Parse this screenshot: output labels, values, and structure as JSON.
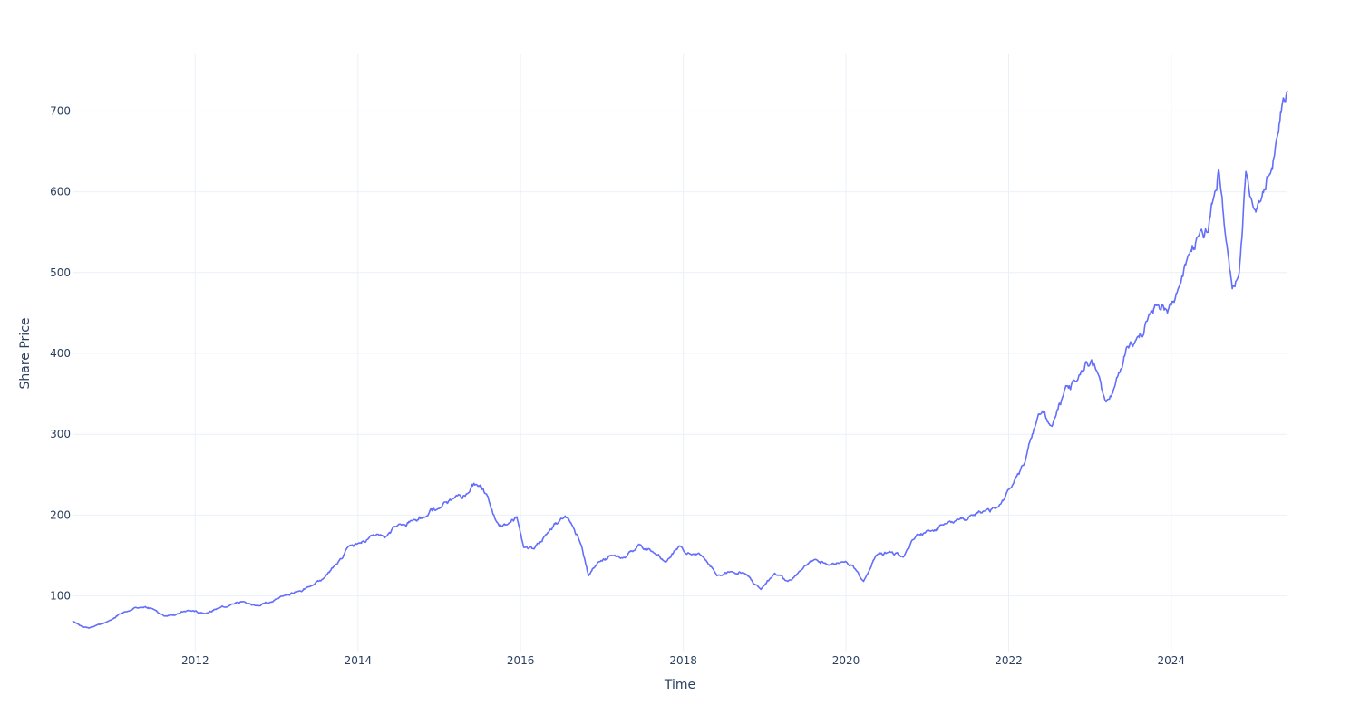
{
  "chart_data": {
    "type": "line",
    "title": "",
    "xlabel": "Time",
    "ylabel": "Share Price",
    "xlim": [
      "2010-06-29",
      "2025-06-06"
    ],
    "ylim": [
      30,
      770
    ],
    "grid": true,
    "x_ticks": [
      "2012",
      "2014",
      "2016",
      "2018",
      "2020",
      "2022",
      "2024"
    ],
    "y_ticks": [
      100,
      200,
      300,
      400,
      500,
      600,
      700
    ],
    "colors": {
      "line": "#636efa",
      "grid": "#ebf0f8",
      "text": "#2a3f5f",
      "background": "#ffffff"
    },
    "series": [
      {
        "x": [
          "2010-06-29",
          "2010-08-15",
          "2010-10-01",
          "2010-12-01",
          "2011-02-15",
          "2011-05-01",
          "2011-07-01",
          "2011-08-15",
          "2011-10-01",
          "2011-12-01",
          "2012-02-15",
          "2012-04-15",
          "2012-06-15",
          "2012-08-01",
          "2012-10-01",
          "2012-12-01",
          "2013-02-01",
          "2013-04-01",
          "2013-06-01",
          "2013-08-01",
          "2013-10-01",
          "2013-11-15",
          "2014-01-01",
          "2014-03-01",
          "2014-05-01",
          "2014-07-01",
          "2014-09-01",
          "2014-11-01",
          "2015-01-01",
          "2015-03-01",
          "2015-05-15",
          "2015-06-15",
          "2015-08-01",
          "2015-09-15",
          "2015-11-01",
          "2015-12-15",
          "2016-01-15",
          "2016-03-01",
          "2016-05-01",
          "2016-07-01",
          "2016-08-15",
          "2016-10-01",
          "2016-11-01",
          "2016-12-15",
          "2017-02-15",
          "2017-04-15",
          "2017-06-15",
          "2017-08-15",
          "2017-10-15",
          "2017-12-15",
          "2018-02-01",
          "2018-04-01",
          "2018-06-01",
          "2018-08-01",
          "2018-10-01",
          "2018-12-15",
          "2019-02-15",
          "2019-04-15",
          "2019-06-15",
          "2019-08-15",
          "2019-10-15",
          "2019-12-15",
          "2020-02-01",
          "2020-03-20",
          "2020-05-15",
          "2020-07-15",
          "2020-09-15",
          "2020-11-15",
          "2021-01-15",
          "2021-03-15",
          "2021-05-15",
          "2021-07-15",
          "2021-09-15",
          "2021-11-15",
          "2022-01-15",
          "2022-03-15",
          "2022-05-15",
          "2022-07-15",
          "2022-09-15",
          "2022-11-01",
          "2022-12-15",
          "2023-02-01",
          "2023-03-15",
          "2023-05-01",
          "2023-06-15",
          "2023-08-01",
          "2023-09-15",
          "2023-11-01",
          "2023-12-15",
          "2024-02-01",
          "2024-03-15",
          "2024-05-01",
          "2024-06-15",
          "2024-07-15",
          "2024-08-01",
          "2024-09-01",
          "2024-10-01",
          "2024-11-01",
          "2024-12-01",
          "2025-01-15",
          "2025-02-15",
          "2025-03-15",
          "2025-04-15",
          "2025-05-15",
          "2025-06-06"
        ],
        "y": [
          69,
          61,
          62,
          68,
          80,
          86,
          83,
          75,
          76,
          82,
          78,
          85,
          90,
          93,
          88,
          92,
          100,
          105,
          112,
          122,
          140,
          160,
          165,
          175,
          172,
          188,
          193,
          198,
          208,
          220,
          228,
          238,
          226,
          192,
          188,
          198,
          160,
          158,
          178,
          196,
          190,
          162,
          125,
          142,
          150,
          147,
          164,
          155,
          142,
          162,
          152,
          148,
          125,
          130,
          128,
          108,
          128,
          118,
          132,
          145,
          138,
          142,
          138,
          118,
          150,
          155,
          148,
          176,
          180,
          188,
          195,
          200,
          205,
          210,
          235,
          265,
          325,
          310,
          360,
          365,
          390,
          378,
          340,
          370,
          408,
          420,
          440,
          460,
          450,
          480,
          520,
          545,
          550,
          600,
          628,
          545,
          480,
          500,
          625,
          575,
          600,
          620,
          660,
          710,
          725
        ]
      }
    ]
  }
}
